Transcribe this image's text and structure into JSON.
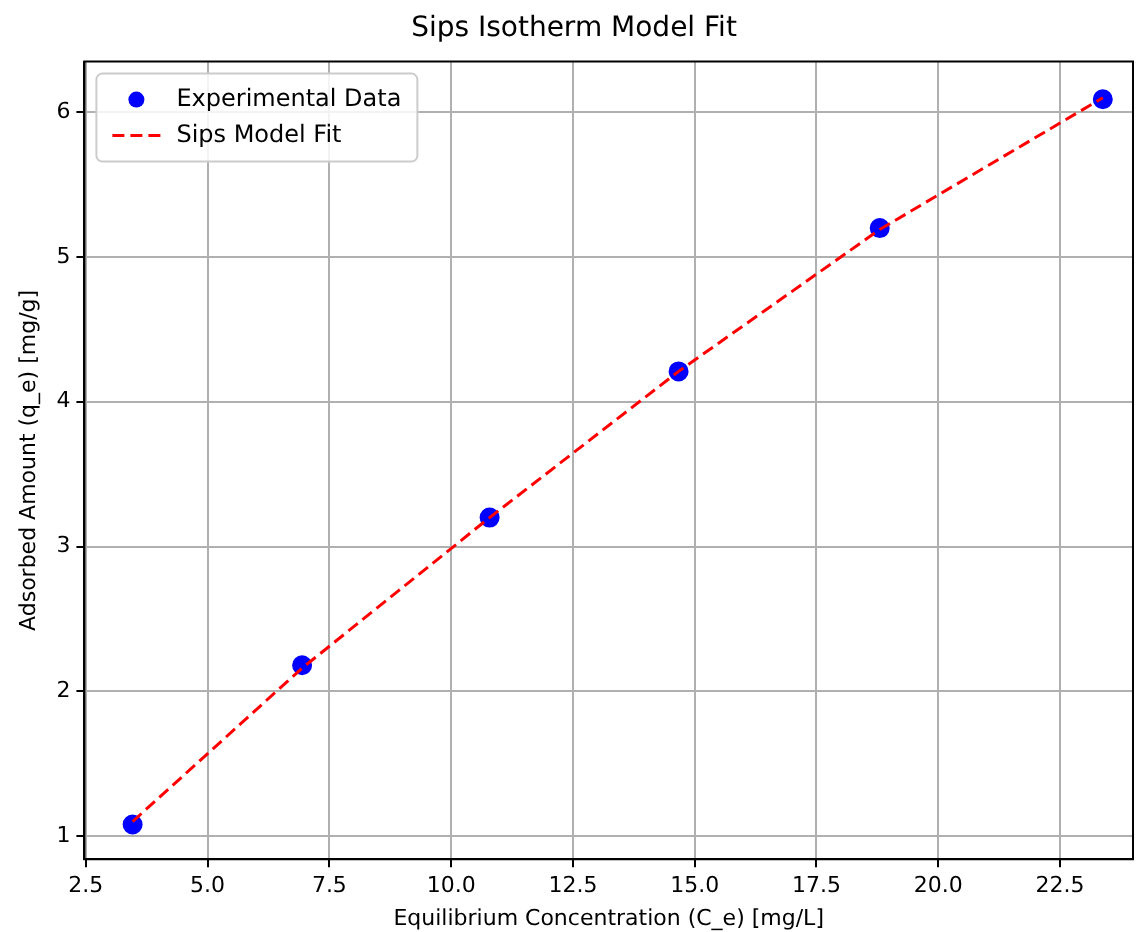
{
  "chart_data": {
    "type": "scatter",
    "title": "Sips Isotherm Model Fit",
    "xlabel": "Equilibrium Concentration (C_e) [mg/L]",
    "ylabel": "Adsorbed Amount (q_e) [mg/g]",
    "x": [
      3.46,
      6.94,
      10.79,
      14.67,
      18.8,
      23.38
    ],
    "series": [
      {
        "name": "Experimental Data",
        "type": "scatter",
        "color": "#0000ff",
        "marker": "circle",
        "values": [
          1.08,
          2.18,
          3.2,
          4.21,
          5.2,
          6.09
        ]
      },
      {
        "name": "Sips Model Fit",
        "type": "line",
        "color": "#ff0000",
        "line_style": "dashed",
        "marker": "none",
        "x": [
          3.46,
          6.94,
          10.79,
          14.67,
          18.8,
          23.38
        ],
        "values": [
          1.1,
          2.16,
          3.2,
          4.21,
          5.19,
          6.1
        ]
      }
    ],
    "xlim": [
      2.47,
      24.0
    ],
    "ylim": [
      0.84,
      6.35
    ],
    "xticks": [
      {
        "value": 2.5,
        "label": "2.5"
      },
      {
        "value": 5,
        "label": "5.0"
      },
      {
        "value": 7.5,
        "label": "7.5"
      },
      {
        "value": 10,
        "label": "10.0"
      },
      {
        "value": 12.5,
        "label": "12.5"
      },
      {
        "value": 15,
        "label": "15.0"
      },
      {
        "value": 17.5,
        "label": "17.5"
      },
      {
        "value": 20,
        "label": "20.0"
      },
      {
        "value": 22.5,
        "label": "22.5"
      }
    ],
    "yticks": [
      1,
      2,
      3,
      4,
      5,
      6
    ],
    "grid": true,
    "legend": "top left"
  }
}
